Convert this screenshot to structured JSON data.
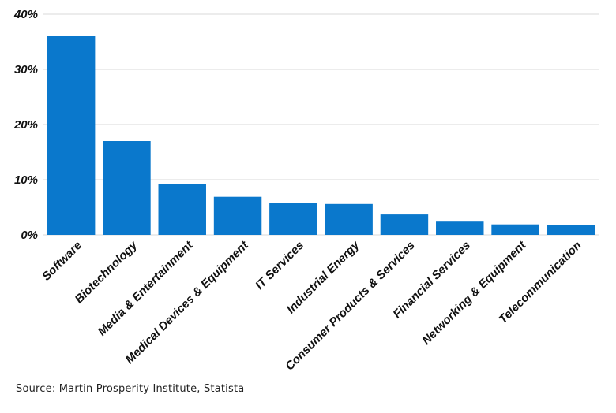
{
  "chart_data": {
    "type": "bar",
    "categories": [
      "Software",
      "Biotechnology",
      "Media & Entertainment",
      "Medical Devices & Equipment",
      "IT Services",
      "Industrial Energy",
      "Consumer Products & Services",
      "Financial Services",
      "Networking & Equipment",
      "Telecommunication"
    ],
    "values": [
      36,
      17,
      9.2,
      6.9,
      5.8,
      5.6,
      3.7,
      2.4,
      1.9,
      1.8
    ],
    "yticks": [
      "0%",
      "10%",
      "20%",
      "30%",
      "40%"
    ],
    "ylim": [
      0,
      40
    ],
    "bar_color": "#0a78cc",
    "grid": true,
    "legend": "none"
  },
  "source": "Source: Martin Prosperity Institute, Statista"
}
